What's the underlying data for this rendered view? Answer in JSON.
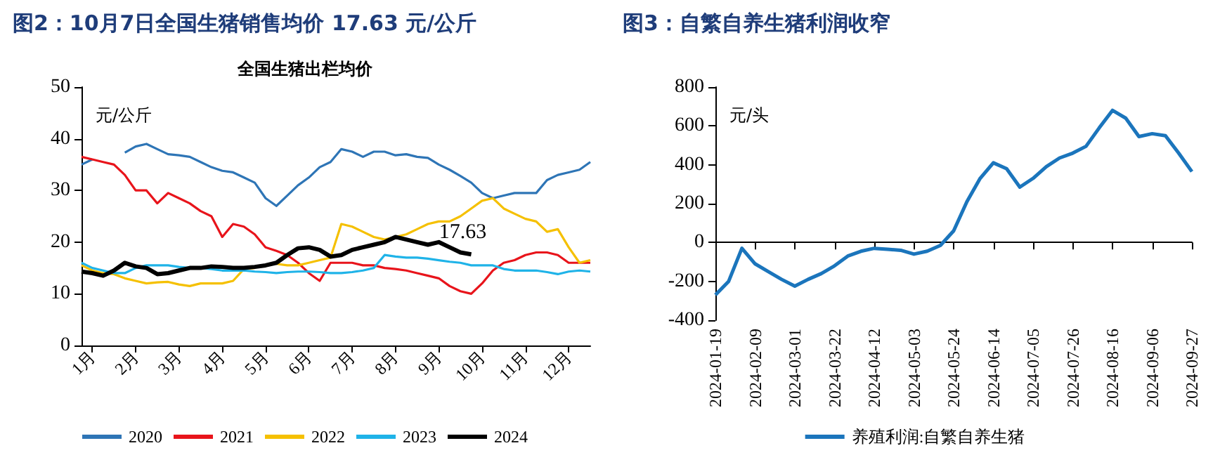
{
  "chart_data": [
    {
      "type": "line",
      "title": "图2：10月7日全国生猪销售均价 17.63 元/公斤",
      "subtitle": "全国生猪出栏均价",
      "ylabel": "元/公斤",
      "categories": [
        null,
        "1月",
        null,
        null,
        null,
        "2月",
        null,
        null,
        null,
        "3月",
        null,
        null,
        null,
        "4月",
        null,
        null,
        null,
        "5月",
        null,
        null,
        null,
        "6月",
        null,
        null,
        null,
        "7月",
        null,
        null,
        null,
        "8月",
        null,
        null,
        null,
        "9月",
        null,
        null,
        null,
        "10月",
        null,
        null,
        null,
        "11月",
        null,
        null,
        null,
        "12月",
        null,
        null
      ],
      "ylim": [
        0,
        50
      ],
      "yticks": [
        0,
        10,
        20,
        30,
        40,
        50
      ],
      "legend": "bottom",
      "marker": "none",
      "series": [
        {
          "name": "2020",
          "color": "#2e75b6",
          "values": [
            35,
            36,
            null,
            null,
            37.3,
            38.5,
            39,
            38,
            37,
            36.8,
            36.5,
            35.5,
            34.5,
            33.8,
            33.5,
            32.5,
            31.5,
            28.5,
            27,
            29,
            31,
            32.5,
            34.5,
            35.5,
            38,
            37.5,
            36.5,
            37.5,
            37.5,
            36.8,
            37,
            36.5,
            36.3,
            35,
            34,
            32.8,
            31.5,
            29.5,
            28.5,
            29,
            29.5,
            29.5,
            29.5,
            32,
            33,
            33.5,
            34,
            35.5
          ]
        },
        {
          "name": "2021",
          "color": "#e8141b",
          "values": [
            36.5,
            36,
            35.5,
            35,
            33,
            30,
            30,
            27.5,
            29.5,
            28.5,
            27.5,
            26,
            25,
            21,
            23.5,
            23,
            21.5,
            19,
            18.3,
            17.5,
            16,
            14,
            12.5,
            16,
            16,
            16,
            15.5,
            15.5,
            15,
            14.8,
            14.5,
            14,
            13.5,
            13,
            11.5,
            10.5,
            10,
            12,
            14.5,
            16,
            16.5,
            17.5,
            18,
            18,
            17.5,
            16,
            16,
            16
          ]
        },
        {
          "name": "2022",
          "color": "#f5c000",
          "values": [
            15.5,
            14.5,
            14,
            13.8,
            13,
            12.5,
            12,
            12.2,
            12.3,
            11.8,
            11.5,
            12,
            12,
            12,
            12.5,
            14.8,
            15,
            null,
            15.8,
            15.5,
            15.5,
            16,
            16.5,
            17,
            23.5,
            23,
            22,
            21,
            20.5,
            21,
            21.5,
            22.5,
            23.5,
            24,
            24,
            25,
            26.5,
            28,
            28.5,
            26.5,
            25.5,
            24.5,
            24,
            22,
            22.5,
            19,
            16,
            16.5
          ]
        },
        {
          "name": "2023",
          "color": "#1fb3e8",
          "values": [
            16,
            15,
            14.5,
            14,
            14,
            15,
            15.5,
            15.5,
            15.5,
            15.2,
            15,
            15,
            14.8,
            14.5,
            14.5,
            14.5,
            14.3,
            14.2,
            14,
            14.2,
            14.3,
            14.3,
            14.2,
            14,
            14,
            14.2,
            14.5,
            15,
            17.5,
            17.2,
            17,
            17,
            16.8,
            16.5,
            16.2,
            16,
            15.5,
            15.5,
            15.5,
            14.8,
            14.5,
            14.5,
            14.5,
            14.2,
            13.8,
            14.3,
            14.5,
            14.3
          ]
        },
        {
          "name": "2024",
          "color": "#000000",
          "values": [
            14.3,
            14,
            13.5,
            14.5,
            16,
            15.3,
            15,
            13.8,
            14,
            14.5,
            15,
            15,
            15.3,
            15.2,
            15,
            15,
            15.2,
            15.5,
            16,
            17.5,
            18.8,
            19,
            18.5,
            17.2,
            17.5,
            18.5,
            19,
            19.5,
            20,
            21,
            20.5,
            20,
            19.5,
            20,
            19,
            18,
            17.63,
            null,
            null,
            null,
            null,
            null,
            null,
            null,
            null,
            null,
            null,
            null
          ],
          "value_labels": [
            null,
            null,
            null,
            null,
            null,
            null,
            null,
            null,
            null,
            null,
            null,
            null,
            null,
            null,
            null,
            null,
            null,
            null,
            null,
            null,
            null,
            null,
            null,
            null,
            null,
            null,
            null,
            null,
            null,
            null,
            null,
            null,
            null,
            null,
            null,
            null,
            "17.63",
            null,
            null,
            null,
            null,
            null,
            null,
            null,
            null,
            null,
            null,
            null
          ]
        }
      ]
    },
    {
      "type": "line",
      "title": "图3：自繁自养生猪利润收窄",
      "ylabel": "元/头",
      "categories": [
        "2024-01-19",
        null,
        null,
        "2024-02-09",
        null,
        null,
        "2024-03-01",
        null,
        null,
        "2024-03-22",
        null,
        null,
        "2024-04-12",
        null,
        null,
        "2024-05-03",
        null,
        null,
        "2024-05-24",
        null,
        null,
        "2024-06-14",
        null,
        null,
        "2024-07-05",
        null,
        null,
        "2024-07-26",
        null,
        null,
        "2024-08-16",
        null,
        null,
        "2024-09-06",
        null,
        null,
        "2024-09-27"
      ],
      "ylim": [
        -400,
        800
      ],
      "yticks": [
        -400,
        -200,
        0,
        200,
        400,
        600,
        800
      ],
      "legend": "bottom",
      "marker": "none",
      "series": [
        {
          "name": "养殖利润:自繁自养生猪",
          "color": "#1b75bc",
          "values": [
            -270,
            -200,
            -30,
            -110,
            -150,
            -190,
            -225,
            -190,
            -160,
            -120,
            -70,
            -45,
            -30,
            -35,
            -40,
            -60,
            -45,
            -15,
            60,
            210,
            330,
            410,
            380,
            285,
            330,
            390,
            435,
            460,
            495,
            590,
            680,
            640,
            545,
            560,
            550,
            460,
            365
          ]
        }
      ]
    }
  ]
}
